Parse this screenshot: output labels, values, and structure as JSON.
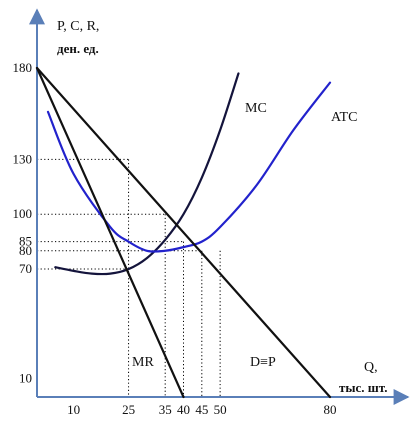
{
  "chart_data": {
    "type": "line",
    "title": "",
    "ylabel": [
      "P, C, R,",
      "ден. ед."
    ],
    "xlabel": [
      "Q,",
      "тыс. шт."
    ],
    "y_ticks": [
      {
        "value": 180,
        "label": "180"
      },
      {
        "value": 130,
        "label": "130"
      },
      {
        "value": 100,
        "label": "100"
      },
      {
        "value": 85,
        "label": "85"
      },
      {
        "value": 80,
        "label": "80"
      },
      {
        "value": 70,
        "label": "70"
      },
      {
        "value": 10,
        "label": "10"
      }
    ],
    "x_ticks": [
      {
        "value": 10,
        "label": "10"
      },
      {
        "value": 25,
        "label": "25"
      },
      {
        "value": 35,
        "label": "35"
      },
      {
        "value": 40,
        "label": "40"
      },
      {
        "value": 45,
        "label": "45"
      },
      {
        "value": 50,
        "label": "50"
      },
      {
        "value": 80,
        "label": "80"
      }
    ],
    "series": [
      {
        "name": "MC",
        "color": "#14143c",
        "points": [
          [
            5,
            71
          ],
          [
            10,
            69
          ],
          [
            15,
            67.5
          ],
          [
            20,
            67.5
          ],
          [
            25,
            70
          ],
          [
            30,
            76
          ],
          [
            35,
            86
          ],
          [
            40,
            100
          ],
          [
            45,
            120
          ],
          [
            50,
            146
          ],
          [
            55,
            177
          ]
        ]
      },
      {
        "name": "ATC",
        "color": "#2222cc",
        "points": [
          [
            3,
            156
          ],
          [
            10,
            122
          ],
          [
            20,
            93
          ],
          [
            25,
            85
          ],
          [
            30,
            80
          ],
          [
            35,
            80
          ],
          [
            40,
            82
          ],
          [
            45,
            85
          ],
          [
            50,
            93
          ],
          [
            60,
            116
          ],
          [
            70,
            146
          ],
          [
            80,
            172
          ]
        ]
      },
      {
        "name": "MR",
        "color": "#111111",
        "points": [
          [
            0,
            180
          ],
          [
            40,
            0
          ]
        ]
      },
      {
        "name": "D≡P",
        "color": "#111111",
        "points": [
          [
            0,
            180
          ],
          [
            80,
            0
          ]
        ]
      }
    ],
    "guides": [
      {
        "from": [
          0,
          130
        ],
        "to": [
          25,
          130
        ]
      },
      {
        "from": [
          0,
          100
        ],
        "to": [
          35,
          100
        ]
      },
      {
        "from": [
          0,
          85
        ],
        "to": [
          40,
          85
        ]
      },
      {
        "from": [
          0,
          80
        ],
        "to": [
          45,
          80
        ]
      },
      {
        "from": [
          0,
          70
        ],
        "to": [
          25,
          70
        ]
      },
      {
        "from": [
          25,
          130
        ],
        "to": [
          25,
          0
        ]
      },
      {
        "from": [
          35,
          100
        ],
        "to": [
          35,
          0
        ]
      },
      {
        "from": [
          40,
          85
        ],
        "to": [
          40,
          0
        ]
      },
      {
        "from": [
          45,
          80
        ],
        "to": [
          45,
          0
        ]
      },
      {
        "from": [
          50,
          80
        ],
        "to": [
          50,
          0
        ]
      }
    ],
    "xlim": [
      0,
      80
    ],
    "ylim": [
      0,
      180
    ],
    "grid": false,
    "colors": {
      "axis": "#5a7fb8",
      "guide": "#000000"
    }
  }
}
